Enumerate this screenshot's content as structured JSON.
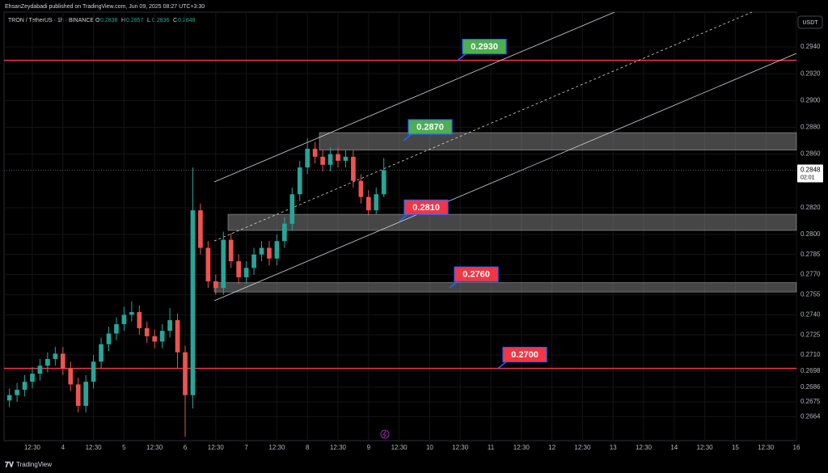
{
  "header": {
    "published": "EhsanZeydabadi published on TradingView.com, Jun 09, 2025 08:27 UTC+3:30"
  },
  "toolbar": {
    "currency": "USDT"
  },
  "footer": {
    "brand": "TradingView"
  },
  "chart_data": {
    "type": "candlestick",
    "title": "TRON / TetherUS · 1h · BINANCE",
    "ohlc_legend": [
      {
        "key": "O",
        "text": "0.2838"
      },
      {
        "key": "H",
        "text": "0.2857"
      },
      {
        "key": "L",
        "text": "0.2836"
      },
      {
        "key": "C",
        "text": "0.2848"
      }
    ],
    "up_color": "#26a69a",
    "down_color": "#ef5350",
    "grid": true,
    "xlim": [
      -0.926,
      25.0
    ],
    "xticks": [
      {
        "value": 0,
        "label": "12:30"
      },
      {
        "value": 1,
        "label": "4"
      },
      {
        "value": 2,
        "label": "12:30"
      },
      {
        "value": 3,
        "label": "5"
      },
      {
        "value": 4,
        "label": "12:30"
      },
      {
        "value": 5,
        "label": "6"
      },
      {
        "value": 6,
        "label": "12:30"
      },
      {
        "value": 7,
        "label": "7"
      },
      {
        "value": 8,
        "label": "12:30"
      },
      {
        "value": 9,
        "label": "8"
      },
      {
        "value": 10,
        "label": "12:30"
      },
      {
        "value": 11,
        "label": "9"
      },
      {
        "value": 12,
        "label": "12:30"
      },
      {
        "value": 13,
        "label": "10"
      },
      {
        "value": 14,
        "label": "12:30"
      },
      {
        "value": 15,
        "label": "11"
      },
      {
        "value": 16,
        "label": "12:30"
      },
      {
        "value": 17,
        "label": "12"
      },
      {
        "value": 18,
        "label": "12:30"
      },
      {
        "value": 19,
        "label": "13"
      },
      {
        "value": 20,
        "label": "12:30"
      },
      {
        "value": 21,
        "label": "14"
      },
      {
        "value": 22,
        "label": "12:30"
      },
      {
        "value": 23,
        "label": "15"
      },
      {
        "value": 24,
        "label": "12:30"
      },
      {
        "value": 25,
        "label": "16"
      }
    ],
    "ylim": [
      0.2646,
      0.2966
    ],
    "yticks": [
      {
        "value": 0.294,
        "label": "0.2940"
      },
      {
        "value": 0.292,
        "label": "0.2920"
      },
      {
        "value": 0.29,
        "label": "0.2900"
      },
      {
        "value": 0.288,
        "label": "0.2880"
      },
      {
        "value": 0.286,
        "label": "0.2860"
      },
      {
        "value": 0.282,
        "label": "0.2820"
      },
      {
        "value": 0.28,
        "label": "0.2800"
      },
      0.2785,
      {
        "value": 0.277,
        "label": "0.2770"
      },
      0.2755,
      {
        "value": 0.274,
        "label": "0.2740"
      },
      0.2725,
      {
        "value": 0.271,
        "label": "0.2710"
      },
      0.2698,
      0.2686,
      0.2675,
      0.2664
    ],
    "x": [
      -0.75,
      -0.5,
      -0.25,
      0,
      0.25,
      0.5,
      0.75,
      1,
      1.25,
      1.5,
      1.75,
      2,
      2.25,
      2.5,
      2.75,
      3,
      3.25,
      3.5,
      3.75,
      4,
      4.25,
      4.5,
      4.75,
      5,
      5.25,
      5.5,
      5.75,
      6,
      6.25,
      6.5,
      6.75,
      7,
      7.25,
      7.5,
      7.75,
      8,
      8.25,
      8.5,
      8.75,
      9,
      9.25,
      9.5,
      9.75,
      10,
      10.25,
      10.5,
      10.75,
      11,
      11.25,
      11.5
    ],
    "open": [
      0.2676,
      0.268,
      0.2684,
      0.269,
      0.2696,
      0.2702,
      0.2707,
      0.2711,
      0.27,
      0.2688,
      0.2672,
      0.269,
      0.2705,
      0.2718,
      0.2726,
      0.2733,
      0.274,
      0.2742,
      0.273,
      0.2724,
      0.272,
      0.2728,
      0.2736,
      0.2712,
      0.268,
      0.2818,
      0.279,
      0.2765,
      0.276,
      0.2796,
      0.278,
      0.2768,
      0.2775,
      0.2785,
      0.279,
      0.2782,
      0.2795,
      0.2808,
      0.283,
      0.285,
      0.2864,
      0.2858,
      0.2852,
      0.286,
      0.2855,
      0.2858,
      0.284,
      0.2828,
      0.2818,
      0.283
    ],
    "high": [
      0.2685,
      0.2689,
      0.2695,
      0.2701,
      0.2707,
      0.2712,
      0.2716,
      0.2716,
      0.2705,
      0.2693,
      0.2695,
      0.271,
      0.2723,
      0.2731,
      0.2738,
      0.2746,
      0.275,
      0.2747,
      0.2735,
      0.2729,
      0.2733,
      0.2745,
      0.2741,
      0.2717,
      0.285,
      0.2823,
      0.2795,
      0.277,
      0.2802,
      0.2801,
      0.2785,
      0.278,
      0.279,
      0.2795,
      0.2795,
      0.28,
      0.2813,
      0.2835,
      0.2855,
      0.2872,
      0.2869,
      0.2863,
      0.2865,
      0.2865,
      0.2863,
      0.2863,
      0.2845,
      0.2833,
      0.2835,
      0.2857
    ],
    "low": [
      0.2671,
      0.2675,
      0.2679,
      0.2685,
      0.2691,
      0.2697,
      0.2702,
      0.2695,
      0.2683,
      0.2667,
      0.2667,
      0.2685,
      0.27,
      0.2713,
      0.2721,
      0.2728,
      0.2735,
      0.2725,
      0.2719,
      0.2715,
      0.2715,
      0.2723,
      0.27,
      0.2649,
      0.267,
      0.2785,
      0.276,
      0.2755,
      0.2755,
      0.2775,
      0.2763,
      0.2763,
      0.277,
      0.278,
      0.2777,
      0.2777,
      0.279,
      0.2803,
      0.2825,
      0.2845,
      0.2853,
      0.2847,
      0.2847,
      0.285,
      0.285,
      0.2835,
      0.2823,
      0.2814,
      0.2815,
      0.2828
    ],
    "close": [
      0.268,
      0.2684,
      0.269,
      0.2696,
      0.2702,
      0.2707,
      0.2711,
      0.27,
      0.2688,
      0.2672,
      0.269,
      0.2705,
      0.2718,
      0.2726,
      0.2733,
      0.274,
      0.2742,
      0.273,
      0.2724,
      0.272,
      0.2728,
      0.2736,
      0.2712,
      0.268,
      0.2818,
      0.279,
      0.2765,
      0.276,
      0.2796,
      0.278,
      0.2768,
      0.2775,
      0.2785,
      0.279,
      0.2782,
      0.2795,
      0.2808,
      0.283,
      0.285,
      0.2864,
      0.2858,
      0.2852,
      0.286,
      0.2855,
      0.2858,
      0.284,
      0.2828,
      0.2818,
      0.283,
      0.2848
    ],
    "last_price": 0.2848,
    "countdown": "02:01",
    "horizontal_lines": [
      {
        "value": 0.293,
        "color": "#f23645"
      },
      {
        "value": 0.27,
        "color": "#f23645"
      }
    ],
    "zones": [
      {
        "range": [
          0.2863,
          0.2876
        ]
      },
      {
        "range": [
          0.2803,
          0.2815
        ]
      },
      {
        "range": [
          0.2757,
          0.2764
        ]
      }
    ],
    "callouts": [
      {
        "value": 0.293,
        "label": "0.2930",
        "color": "#4caf50"
      },
      {
        "value": 0.287,
        "label": "0.2870",
        "color": "#4caf50"
      },
      {
        "value": 0.281,
        "label": "0.2810",
        "color": "#f23645"
      },
      {
        "value": 0.276,
        "label": "0.2760",
        "color": "#f23645"
      },
      {
        "value": 0.27,
        "label": "0.2700",
        "color": "#f23645"
      }
    ]
  }
}
